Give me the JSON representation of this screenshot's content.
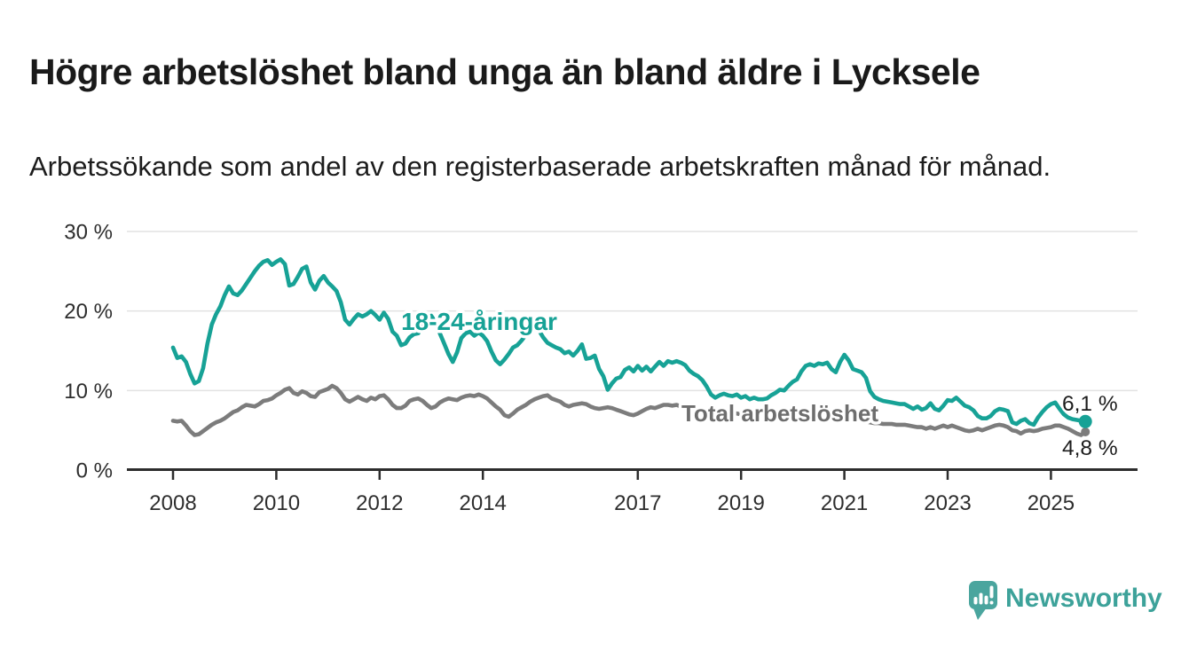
{
  "header": {
    "title": "Högre arbetslöshet bland unga än bland äldre i Lycksele",
    "subtitle": "Arbetssökande som andel av den registerbaserade arbetskraften månad för månad."
  },
  "branding": {
    "name": "Newsworthy",
    "text_color": "#3da29a",
    "icon": "bar-chart-speech-bubble-icon",
    "icon_color": "#4aa59e"
  },
  "chart_data": {
    "type": "line",
    "title": "Högre arbetslöshet bland unga än bland äldre i Lycksele",
    "subtitle": "Arbetssökande som andel av den registerbaserade arbetskraften månad för månad.",
    "unit": "%",
    "grid": "horizontal",
    "legend_position": "inline-labels",
    "ylim": [
      0,
      30
    ],
    "xlim": [
      2007.1,
      2026.7
    ],
    "y_ticks": [
      {
        "value": 30,
        "label": "30 %"
      },
      {
        "value": 20,
        "label": "20 %"
      },
      {
        "value": 10,
        "label": "10 %"
      },
      {
        "value": 0,
        "label": "0 %"
      }
    ],
    "x_ticks": [
      {
        "value": 2008,
        "label": "2008"
      },
      {
        "value": 2010,
        "label": "2010"
      },
      {
        "value": 2012,
        "label": "2012"
      },
      {
        "value": 2014,
        "label": "2014"
      },
      {
        "value": 2017,
        "label": "2017"
      },
      {
        "value": 2019,
        "label": "2019"
      },
      {
        "value": 2021,
        "label": "2021"
      },
      {
        "value": 2023,
        "label": "2023"
      },
      {
        "value": 2025,
        "label": "2025"
      }
    ],
    "series": [
      {
        "name": "Total arbetslöshet",
        "color": "#7c7c7c",
        "label_color": "#6e6e6e",
        "end_label": "4,8 %",
        "end_value": 4.8,
        "start_year": 2008.0,
        "interval_years": 0.08333,
        "values": [
          6.2,
          6.1,
          6.2,
          5.6,
          4.9,
          4.4,
          4.5,
          4.9,
          5.3,
          5.7,
          6.0,
          6.2,
          6.5,
          6.9,
          7.3,
          7.5,
          7.9,
          8.2,
          8.1,
          8.0,
          8.3,
          8.7,
          8.8,
          9.0,
          9.4,
          9.7,
          10.1,
          10.3,
          9.7,
          9.5,
          9.9,
          9.7,
          9.3,
          9.2,
          9.8,
          10.0,
          10.2,
          10.6,
          10.3,
          9.7,
          8.9,
          8.6,
          8.9,
          9.2,
          8.9,
          8.7,
          9.1,
          8.9,
          9.3,
          9.4,
          8.9,
          8.2,
          7.8,
          7.8,
          8.1,
          8.7,
          8.9,
          9.0,
          8.7,
          8.2,
          7.8,
          8.0,
          8.5,
          8.8,
          9.0,
          8.9,
          8.8,
          9.1,
          9.3,
          9.4,
          9.3,
          9.5,
          9.3,
          9.0,
          8.5,
          8.0,
          7.6,
          6.9,
          6.7,
          7.1,
          7.6,
          7.9,
          8.2,
          8.6,
          8.9,
          9.1,
          9.3,
          9.4,
          9.0,
          8.8,
          8.6,
          8.2,
          8.0,
          8.2,
          8.3,
          8.4,
          8.3,
          8.0,
          7.8,
          7.7,
          7.8,
          7.9,
          7.8,
          7.6,
          7.4,
          7.2,
          7.0,
          6.9,
          7.1,
          7.4,
          7.7,
          7.9,
          7.8,
          8.0,
          8.2,
          8.2,
          8.1,
          8.2,
          8.0,
          7.9,
          7.8,
          7.6,
          7.4,
          7.3,
          7.2,
          7.1,
          7.2,
          7.3,
          7.2,
          7.1,
          7.2,
          7.1,
          7.0,
          6.9,
          6.8,
          6.8,
          6.7,
          6.8,
          6.9,
          7.0,
          6.9,
          7.0,
          7.1,
          7.2,
          7.3,
          7.4,
          7.3,
          7.2,
          7.1,
          7.0,
          6.9,
          6.8,
          6.8,
          6.7,
          6.6,
          6.5,
          6.5,
          6.4,
          6.4,
          6.3,
          6.2,
          6.1,
          6.0,
          5.9,
          5.9,
          5.8,
          5.8,
          5.8,
          5.7,
          5.7,
          5.7,
          5.6,
          5.5,
          5.4,
          5.4,
          5.2,
          5.4,
          5.2,
          5.4,
          5.6,
          5.4,
          5.6,
          5.4,
          5.2,
          5.0,
          4.9,
          5.0,
          5.2,
          5.0,
          5.2,
          5.4,
          5.6,
          5.7,
          5.6,
          5.4,
          5.0,
          4.9,
          4.6,
          4.9,
          5.0,
          4.9,
          5.0,
          5.2,
          5.3,
          5.4,
          5.6,
          5.6,
          5.4,
          5.2,
          4.9,
          4.6,
          4.4,
          4.8
        ]
      },
      {
        "name": "18-24-åringar",
        "color": "#17a296",
        "label_color": "#17a296",
        "end_label": "6,1 %",
        "end_value": 6.1,
        "start_year": 2008.0,
        "interval_years": 0.08333,
        "values": [
          15.4,
          14.1,
          14.3,
          13.6,
          12.1,
          10.9,
          11.2,
          12.8,
          15.9,
          18.3,
          19.6,
          20.6,
          22.0,
          23.1,
          22.2,
          22.0,
          22.6,
          23.4,
          24.2,
          25.0,
          25.7,
          26.2,
          26.4,
          25.8,
          26.2,
          26.5,
          25.9,
          23.2,
          23.4,
          24.3,
          25.3,
          25.6,
          23.6,
          22.7,
          23.8,
          24.4,
          23.6,
          23.1,
          22.5,
          21.1,
          18.9,
          18.3,
          19.0,
          19.6,
          19.3,
          19.6,
          20.0,
          19.5,
          18.9,
          19.8,
          19.0,
          17.4,
          16.9,
          15.7,
          15.9,
          16.7,
          17.1,
          17.2,
          18.2,
          19.1,
          19.4,
          18.6,
          17.2,
          15.9,
          14.6,
          13.6,
          14.8,
          16.6,
          17.2,
          17.4,
          16.9,
          17.3,
          16.9,
          16.2,
          14.9,
          13.8,
          13.3,
          13.9,
          14.6,
          15.4,
          15.7,
          16.3,
          17.0,
          17.5,
          18.2,
          17.6,
          16.7,
          16.0,
          15.7,
          15.4,
          15.2,
          14.7,
          14.9,
          14.4,
          15.0,
          15.8,
          14.0,
          14.1,
          14.4,
          12.7,
          11.8,
          10.1,
          10.9,
          11.5,
          11.7,
          12.6,
          12.9,
          12.4,
          13.1,
          12.5,
          13.0,
          12.4,
          13.0,
          13.6,
          13.1,
          13.7,
          13.5,
          13.7,
          13.5,
          13.2,
          12.5,
          12.1,
          11.8,
          11.3,
          10.5,
          9.5,
          9.1,
          9.4,
          9.6,
          9.4,
          9.3,
          9.5,
          9.1,
          9.3,
          8.9,
          9.1,
          8.9,
          8.9,
          9.0,
          9.4,
          9.7,
          10.1,
          10.0,
          10.6,
          11.1,
          11.4,
          12.4,
          13.1,
          13.3,
          13.1,
          13.4,
          13.3,
          13.5,
          12.7,
          12.3,
          13.6,
          14.5,
          13.8,
          12.7,
          12.5,
          12.3,
          11.6,
          9.9,
          9.2,
          8.9,
          8.7,
          8.6,
          8.5,
          8.4,
          8.3,
          8.3,
          8.0,
          7.7,
          8.0,
          7.6,
          7.8,
          8.4,
          7.7,
          7.5,
          8.1,
          8.8,
          8.7,
          9.1,
          8.6,
          8.1,
          7.9,
          7.5,
          6.8,
          6.5,
          6.5,
          6.8,
          7.4,
          7.7,
          7.6,
          7.4,
          6.0,
          5.8,
          6.2,
          6.4,
          5.9,
          5.7,
          6.6,
          7.3,
          7.9,
          8.3,
          8.5,
          7.7,
          7.0,
          6.6,
          6.4,
          6.3,
          6.2,
          6.1
        ]
      }
    ]
  }
}
